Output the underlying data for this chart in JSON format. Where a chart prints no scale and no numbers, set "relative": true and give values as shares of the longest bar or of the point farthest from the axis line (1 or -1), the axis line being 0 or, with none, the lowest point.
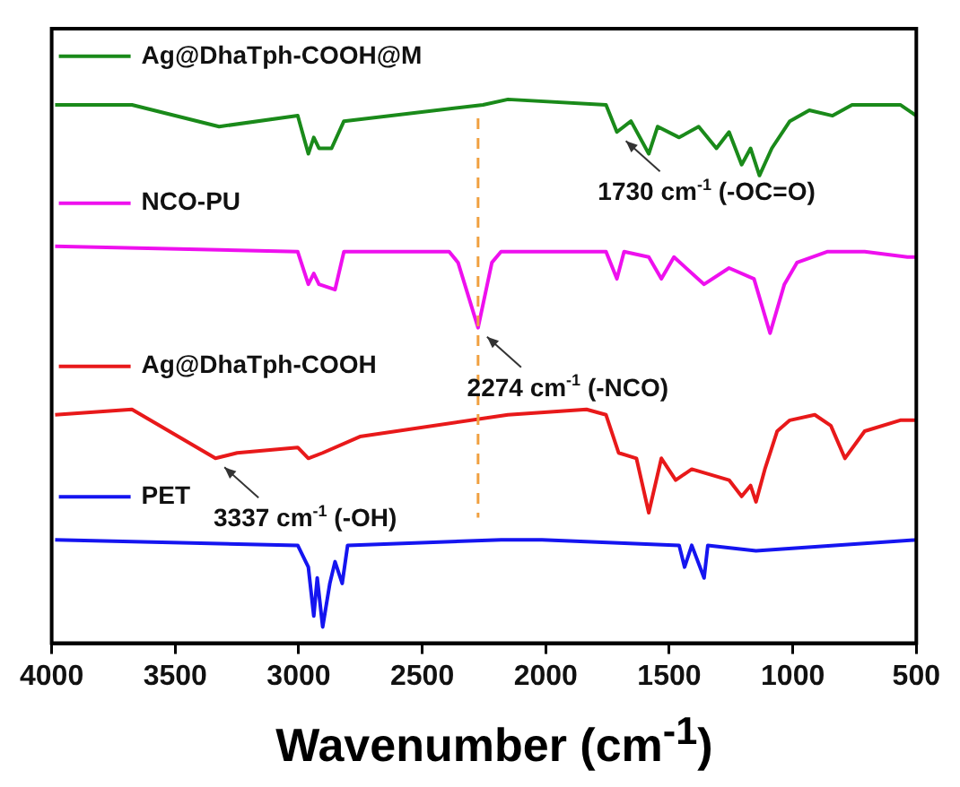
{
  "chart_data": {
    "type": "line",
    "relative": true,
    "xlabel": "Wavenumber (cm$^{-1}$)",
    "xlim": [
      4000,
      500
    ],
    "xticks": [
      4000,
      3500,
      3000,
      2500,
      2000,
      1500,
      1000,
      500
    ],
    "grid": false,
    "legend": "top left",
    "marker": "none",
    "line_style": "solid",
    "series": [
      {
        "name": "Ag@DhaTph-COOH@M",
        "color": "#1a8a1a",
        "x": [
          3986,
          3675,
          3322,
          3004,
          2961,
          2939,
          2918,
          2867,
          2817,
          2254,
          2153,
          1756,
          1712,
          1655,
          1583,
          1547,
          1460,
          1381,
          1309,
          1258,
          1207,
          1171,
          1135,
          1085,
          1012,
          933,
          839,
          760,
          565,
          500
        ],
        "values": [
          0.99,
          0.99,
          0.95,
          0.97,
          0.9,
          0.93,
          0.91,
          0.91,
          0.96,
          0.99,
          1.0,
          0.99,
          0.94,
          0.96,
          0.9,
          0.95,
          0.93,
          0.95,
          0.91,
          0.94,
          0.88,
          0.91,
          0.86,
          0.91,
          0.96,
          0.98,
          0.97,
          0.99,
          0.99,
          0.97
        ]
      },
      {
        "name": "NCO-PU",
        "color": "#ee10ee",
        "x": [
          3986,
          3004,
          2961,
          2939,
          2918,
          2853,
          2817,
          2391,
          2355,
          2274,
          2218,
          2181,
          1756,
          1712,
          1683,
          1583,
          1532,
          1481,
          1359,
          1258,
          1157,
          1092,
          1034,
          983,
          861,
          709,
          536,
          500
        ],
        "values": [
          0.73,
          0.72,
          0.66,
          0.68,
          0.66,
          0.65,
          0.72,
          0.72,
          0.7,
          0.58,
          0.7,
          0.72,
          0.72,
          0.67,
          0.72,
          0.71,
          0.67,
          0.71,
          0.66,
          0.69,
          0.67,
          0.57,
          0.66,
          0.7,
          0.72,
          0.72,
          0.71,
          0.71
        ]
      },
      {
        "name": "Ag@DhaTph-COOH",
        "color": "#e8191a",
        "x": [
          3986,
          3675,
          3337,
          3249,
          3004,
          2961,
          2903,
          2752,
          2153,
          1835,
          1756,
          1705,
          1633,
          1583,
          1532,
          1474,
          1409,
          1258,
          1207,
          1171,
          1149,
          1113,
          1063,
          1012,
          911,
          846,
          789,
          709,
          565,
          500
        ],
        "values": [
          0.42,
          0.43,
          0.34,
          0.35,
          0.36,
          0.34,
          0.35,
          0.38,
          0.42,
          0.43,
          0.42,
          0.35,
          0.34,
          0.24,
          0.34,
          0.3,
          0.32,
          0.3,
          0.27,
          0.29,
          0.26,
          0.32,
          0.39,
          0.41,
          0.42,
          0.4,
          0.34,
          0.39,
          0.41,
          0.41
        ]
      },
      {
        "name": "PET",
        "color": "#1515f0",
        "x": [
          3986,
          3004,
          2961,
          2939,
          2925,
          2903,
          2874,
          2853,
          2824,
          2802,
          2181,
          2015,
          1460,
          1438,
          1409,
          1359,
          1344,
          1149,
          500
        ],
        "values": [
          0.19,
          0.18,
          0.14,
          0.05,
          0.12,
          0.03,
          0.11,
          0.15,
          0.11,
          0.18,
          0.19,
          0.19,
          0.18,
          0.14,
          0.18,
          0.12,
          0.18,
          0.17,
          0.19
        ]
      }
    ],
    "ref_lines": [
      {
        "axis": "x",
        "value": 2274,
        "color": "#f0a040",
        "line_style": "dashed"
      }
    ],
    "annotations": [
      {
        "text": "1730 cm$^{-1}$ (-OC=O)",
        "x": 1712,
        "y": 0.94
      },
      {
        "text": "2274 cm$^{-1}$ (-NCO)",
        "x": 2274,
        "y": 0.58
      },
      {
        "text": "3337 cm$^{-1}$ (-OH)",
        "x": 3337,
        "y": 0.34
      }
    ]
  }
}
